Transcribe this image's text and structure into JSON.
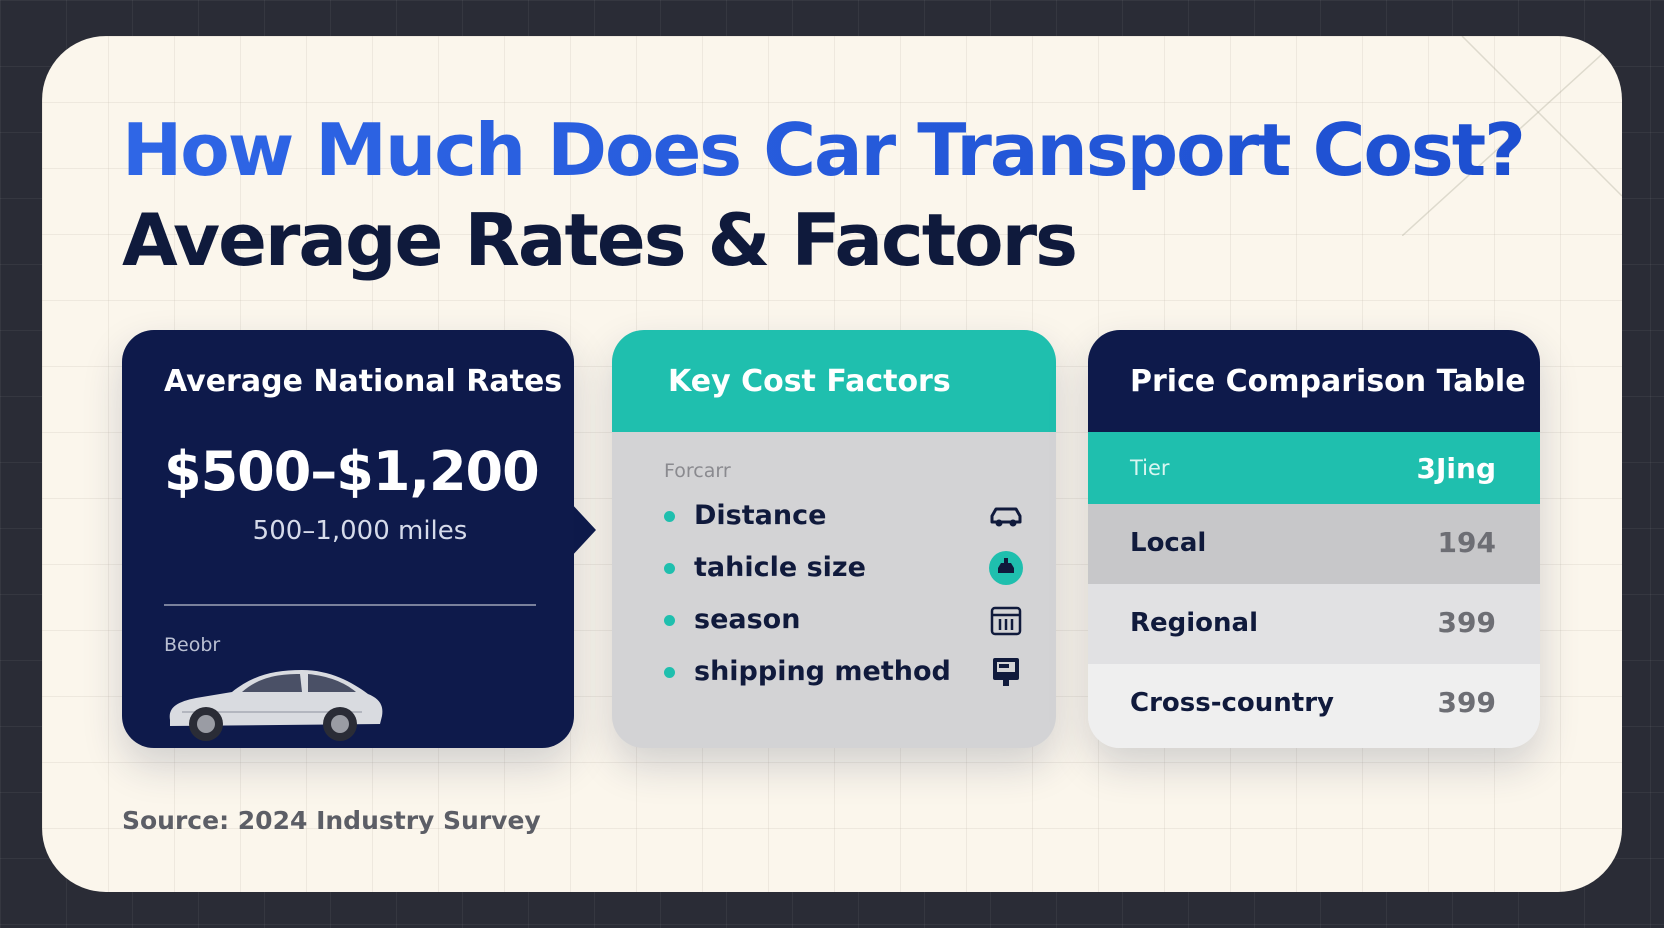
{
  "title": {
    "line1": "How Much Does Car Transport Cost?",
    "line2": "Average Rates & Factors"
  },
  "rates_panel": {
    "heading": "Average National Rates",
    "price_range": "$500–$1,200",
    "distance": "500–1,000 miles",
    "small_label": "Beobr"
  },
  "factors_panel": {
    "heading": "Key Cost Factors",
    "small_label": "Forcarr",
    "items": [
      {
        "label": "Distance",
        "icon": "car-icon"
      },
      {
        "label": "tahicle size",
        "icon": "vehicle-badge-icon"
      },
      {
        "label": "season",
        "icon": "calendar-icon"
      },
      {
        "label": "shipping method",
        "icon": "truck-screen-icon"
      }
    ]
  },
  "price_table": {
    "heading": "Price Comparison Table",
    "columns": [
      "Tier",
      "3Jing"
    ],
    "rows": [
      {
        "tier": "Local",
        "value": "194"
      },
      {
        "tier": "Regional",
        "value": "399"
      },
      {
        "tier": "Cross-country",
        "value": "399"
      }
    ]
  },
  "source": "Source: 2024 Industry Survey",
  "colors": {
    "navy": "#0e1a4b",
    "teal": "#1fbfae",
    "title_blue": "#2f66e6",
    "card_bg": "#fbf6ec"
  }
}
